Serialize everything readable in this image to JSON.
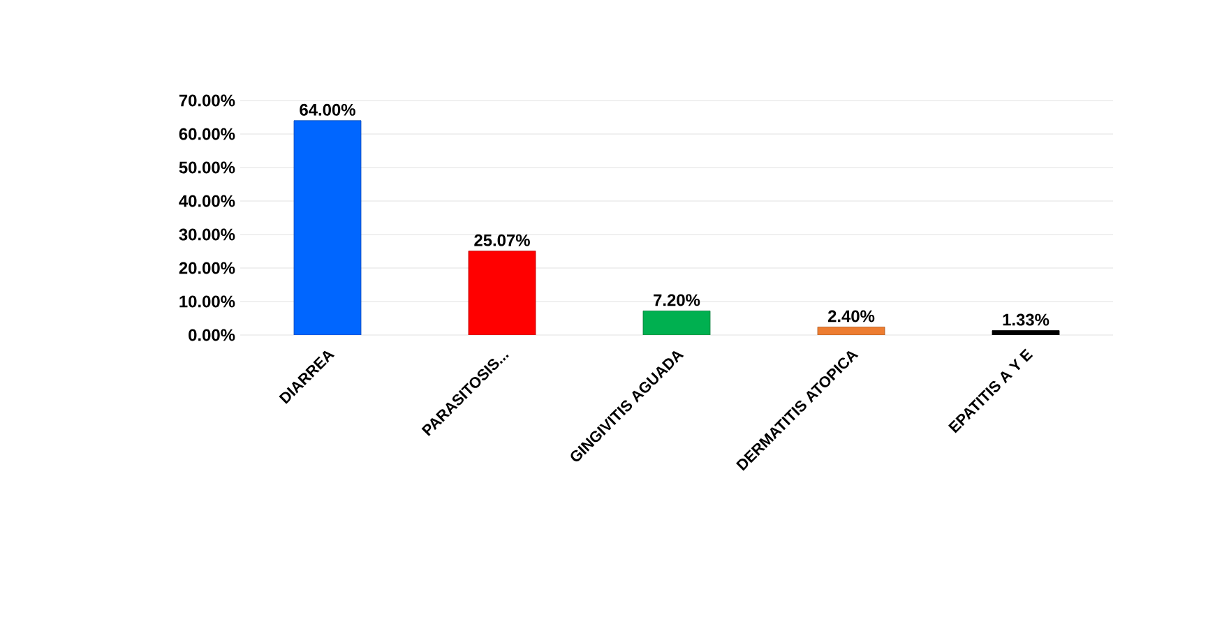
{
  "chart_data": {
    "type": "bar",
    "categories": [
      "DIARREA",
      "PARASITOSIS...",
      "GINGIVITIS AGUADA",
      "DERMATITIS ATOPICA",
      "EPATITIS A Y E"
    ],
    "values": [
      64.0,
      25.07,
      7.2,
      2.4,
      1.33
    ],
    "colors": [
      "#0066ff",
      "#ff0000",
      "#00b050",
      "#ed7d31",
      "#000000"
    ],
    "value_labels": [
      "64.00%",
      "25.07%",
      "7.20%",
      "2.40%",
      "1.33%"
    ],
    "ylim": [
      0,
      70
    ],
    "yticks": [
      {
        "value": 0,
        "label": "0.00%"
      },
      {
        "value": 10,
        "label": "10.00%"
      },
      {
        "value": 20,
        "label": "20.00%"
      },
      {
        "value": 30,
        "label": "30.00%"
      },
      {
        "value": 40,
        "label": "40.00%"
      },
      {
        "value": 50,
        "label": "50.00%"
      },
      {
        "value": 60,
        "label": "60.00%"
      },
      {
        "value": 70,
        "label": "70.00%"
      }
    ],
    "grid": "y"
  }
}
